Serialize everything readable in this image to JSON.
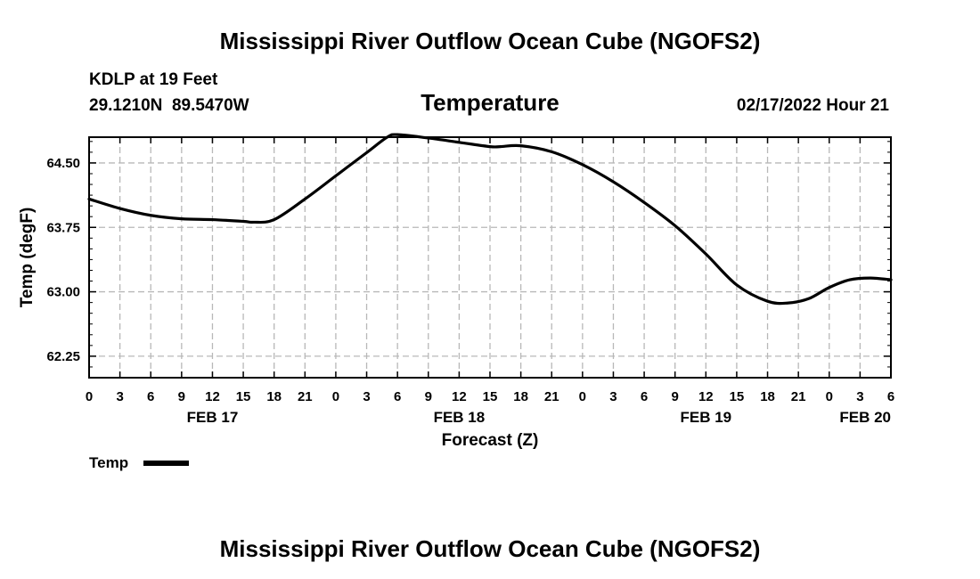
{
  "page_title": "Mississippi River Outflow Ocean Cube (NGOFS2)",
  "footer_title": "Mississippi River Outflow Ocean Cube (NGOFS2)",
  "station": {
    "name": "KDLP at 19 Feet",
    "coords": "29.1210N  89.5470W",
    "datetime": "02/17/2022 Hour 21"
  },
  "chart_data": {
    "type": "line",
    "title": "Temperature",
    "xlabel": "Forecast (Z)",
    "ylabel": "Temp (degF)",
    "x_unit": "hours from FEB 17 00Z",
    "xlim": [
      0,
      78
    ],
    "ylim": [
      62.0,
      64.8
    ],
    "grid": true,
    "y_ticks": [
      {
        "value": 62.25,
        "label": "62.25"
      },
      {
        "value": 63.0,
        "label": "63.00"
      },
      {
        "value": 63.75,
        "label": "63.75"
      },
      {
        "value": 64.5,
        "label": "64.50"
      }
    ],
    "x_ticks": [
      {
        "value": 0,
        "label": "0"
      },
      {
        "value": 3,
        "label": "3"
      },
      {
        "value": 6,
        "label": "6"
      },
      {
        "value": 9,
        "label": "9"
      },
      {
        "value": 12,
        "label": "12"
      },
      {
        "value": 15,
        "label": "15"
      },
      {
        "value": 18,
        "label": "18"
      },
      {
        "value": 21,
        "label": "21"
      },
      {
        "value": 24,
        "label": "0"
      },
      {
        "value": 27,
        "label": "3"
      },
      {
        "value": 30,
        "label": "6"
      },
      {
        "value": 33,
        "label": "9"
      },
      {
        "value": 36,
        "label": "12"
      },
      {
        "value": 39,
        "label": "15"
      },
      {
        "value": 42,
        "label": "18"
      },
      {
        "value": 45,
        "label": "21"
      },
      {
        "value": 48,
        "label": "0"
      },
      {
        "value": 51,
        "label": "3"
      },
      {
        "value": 54,
        "label": "6"
      },
      {
        "value": 57,
        "label": "9"
      },
      {
        "value": 60,
        "label": "12"
      },
      {
        "value": 63,
        "label": "15"
      },
      {
        "value": 66,
        "label": "18"
      },
      {
        "value": 69,
        "label": "21"
      },
      {
        "value": 72,
        "label": "0"
      },
      {
        "value": 75,
        "label": "3"
      },
      {
        "value": 78,
        "label": "6"
      }
    ],
    "date_labels": [
      {
        "value": 12,
        "label": "FEB 17",
        "align": "middle"
      },
      {
        "value": 36,
        "label": "FEB 18",
        "align": "middle"
      },
      {
        "value": 60,
        "label": "FEB 19",
        "align": "middle"
      },
      {
        "value": 78,
        "label": "FEB 20",
        "align": "end"
      }
    ],
    "series": [
      {
        "name": "Temp",
        "color": "#000000",
        "x": [
          0,
          3,
          6,
          9,
          12,
          15,
          16,
          18,
          21,
          24,
          27,
          29,
          30,
          33,
          36,
          39,
          40,
          42,
          45,
          48,
          51,
          54,
          57,
          60,
          63,
          66,
          68,
          70,
          72,
          74,
          76,
          78
        ],
        "y": [
          64.08,
          63.97,
          63.89,
          63.85,
          63.84,
          63.82,
          63.81,
          63.84,
          64.08,
          64.35,
          64.62,
          64.8,
          64.83,
          64.79,
          64.74,
          64.69,
          64.69,
          64.7,
          64.63,
          64.48,
          64.28,
          64.04,
          63.77,
          63.44,
          63.08,
          62.89,
          62.87,
          62.92,
          63.05,
          63.14,
          63.16,
          63.14
        ]
      }
    ]
  },
  "legend": {
    "position": "bottom-left",
    "items": [
      {
        "label": "Temp",
        "color": "#000000"
      }
    ]
  }
}
